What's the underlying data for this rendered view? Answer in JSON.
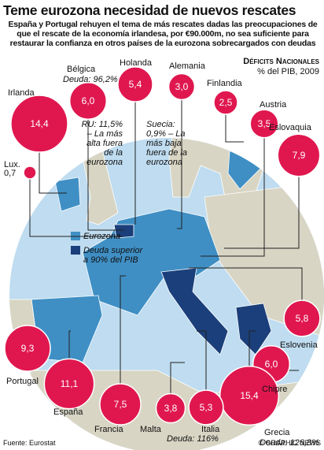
{
  "header": {
    "title": "Teme eurozona necesidad de nuevos rescates",
    "subtitle": "España y Portugal rehuyen el tema de más rescates dadas las preocupaciones de que el rescate de la economía irlandesa, por €90.000m, no sea suficiente para restaurar la confianza en otros países de la eurozona sobrecargados con deudas"
  },
  "key": {
    "title": "Déficits Nacionales",
    "unit": "% del PIB, 2009"
  },
  "annotations": {
    "uk": "RU: 11,5% – La más alta fuera de la eurozona",
    "sweden": "Suecia: 0,9% – La más baja fuera de la eurozona"
  },
  "legend": {
    "eurozone": "Eurozona",
    "debt": "Deuda superior a 90% del PIB"
  },
  "countries": [
    {
      "name": "Irlanda",
      "value": 14.4,
      "value_label": "14,4"
    },
    {
      "name": "Bélgica",
      "value": 6.0,
      "value_label": "6,0",
      "note": "Deuda: 96,2%"
    },
    {
      "name": "Holanda",
      "value": 5.4,
      "value_label": "5,4"
    },
    {
      "name": "Alemania",
      "value": 3.0,
      "value_label": "3,0"
    },
    {
      "name": "Finlandia",
      "value": 2.5,
      "value_label": "2,5"
    },
    {
      "name": "Austria",
      "value": 3.5,
      "value_label": "3,5"
    },
    {
      "name": "Eslovaquia",
      "value": 7.9,
      "value_label": "7,9"
    },
    {
      "name": "Lux.",
      "value": 0.7,
      "value_label": "0,7"
    },
    {
      "name": "Eslovenia",
      "value": 5.8,
      "value_label": "5,8"
    },
    {
      "name": "Chipre",
      "value": 6.0,
      "value_label": "6,0"
    },
    {
      "name": "Grecia",
      "value": 15.4,
      "value_label": "15,4",
      "note": "Deuda: 126,8%"
    },
    {
      "name": "Italia",
      "value": 5.3,
      "value_label": "5,3",
      "note": "Deuda: 116%"
    },
    {
      "name": "Malta",
      "value": 3.8,
      "value_label": "3,8"
    },
    {
      "name": "Francia",
      "value": 7.5,
      "value_label": "7,5"
    },
    {
      "name": "España",
      "value": 11.1,
      "value_label": "11,1"
    },
    {
      "name": "Portugal",
      "value": 9.3,
      "value_label": "9,3"
    }
  ],
  "footer": {
    "source": "Fuente: Eurostat",
    "credit": "© GRAPHIC NEWS"
  }
}
